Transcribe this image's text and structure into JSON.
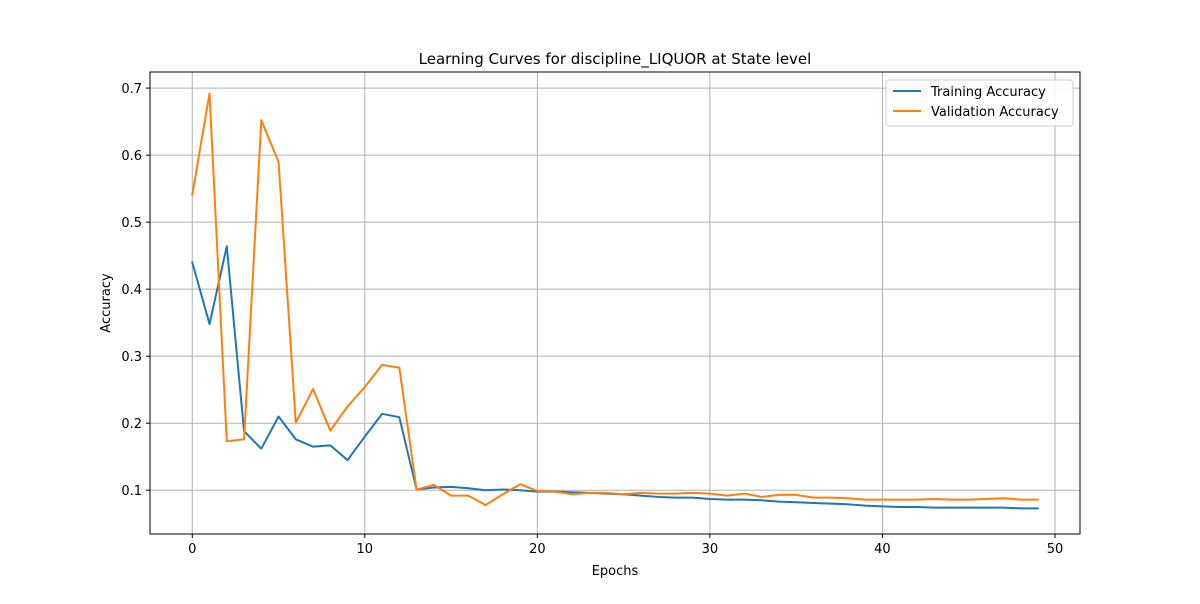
{
  "chart_data": {
    "type": "line",
    "title": "Learning Curves for discipline_LIQUOR at State level",
    "xlabel": "Epochs",
    "ylabel": "Accuracy",
    "xlim": [
      -2.45,
      51.45
    ],
    "ylim": [
      0.0347,
      0.724
    ],
    "xticks": [
      0,
      10,
      20,
      30,
      40,
      50
    ],
    "yticks": [
      0.1,
      0.2,
      0.3,
      0.4,
      0.5,
      0.6,
      0.7
    ],
    "xtick_labels": [
      "0",
      "10",
      "20",
      "30",
      "40",
      "50"
    ],
    "ytick_labels": [
      "0.1",
      "0.2",
      "0.3",
      "0.4",
      "0.5",
      "0.6",
      "0.7"
    ],
    "grid": true,
    "legend_position": "top-right",
    "x": [
      0,
      1,
      2,
      3,
      4,
      5,
      6,
      7,
      8,
      9,
      10,
      11,
      12,
      13,
      14,
      15,
      16,
      17,
      18,
      19,
      20,
      21,
      22,
      23,
      24,
      25,
      26,
      27,
      28,
      29,
      30,
      31,
      32,
      33,
      34,
      35,
      36,
      37,
      38,
      39,
      40,
      41,
      42,
      43,
      44,
      45,
      46,
      47,
      48,
      49
    ],
    "series": [
      {
        "name": "Training Accuracy",
        "color": "#1f77b4",
        "values": [
          0.44,
          0.348,
          0.464,
          0.188,
          0.162,
          0.21,
          0.176,
          0.165,
          0.167,
          0.145,
          0.18,
          0.214,
          0.209,
          0.101,
          0.104,
          0.105,
          0.103,
          0.1,
          0.101,
          0.1,
          0.098,
          0.098,
          0.097,
          0.096,
          0.095,
          0.094,
          0.092,
          0.09,
          0.089,
          0.089,
          0.087,
          0.086,
          0.086,
          0.085,
          0.083,
          0.082,
          0.081,
          0.08,
          0.079,
          0.077,
          0.076,
          0.075,
          0.075,
          0.074,
          0.074,
          0.074,
          0.074,
          0.074,
          0.073,
          0.073
        ]
      },
      {
        "name": "Validation Accuracy",
        "color": "#ff7f0e",
        "values": [
          0.541,
          0.692,
          0.173,
          0.176,
          0.652,
          0.59,
          0.201,
          0.251,
          0.189,
          0.225,
          0.254,
          0.287,
          0.283,
          0.101,
          0.108,
          0.092,
          0.092,
          0.078,
          0.094,
          0.109,
          0.099,
          0.098,
          0.094,
          0.096,
          0.096,
          0.094,
          0.096,
          0.095,
          0.095,
          0.096,
          0.095,
          0.092,
          0.095,
          0.09,
          0.093,
          0.093,
          0.089,
          0.089,
          0.088,
          0.086,
          0.086,
          0.086,
          0.086,
          0.087,
          0.086,
          0.086,
          0.087,
          0.088,
          0.086,
          0.086
        ]
      }
    ]
  }
}
